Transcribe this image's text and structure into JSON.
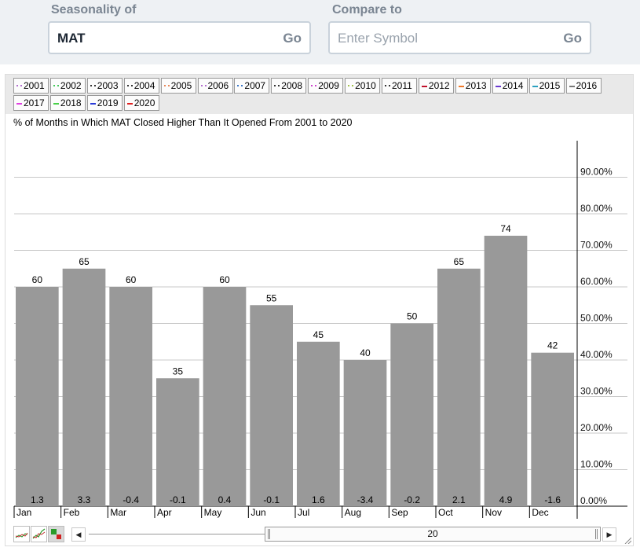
{
  "search": {
    "seasonality_label": "Seasonality of",
    "symbol_value": "MAT",
    "compare_label": "Compare to",
    "compare_placeholder": "Enter Symbol",
    "go_label": "Go"
  },
  "legend": {
    "items": [
      {
        "label": "2001",
        "color": "#b36fd0",
        "style": "dotted"
      },
      {
        "label": "2002",
        "color": "#44c95c",
        "style": "dotted"
      },
      {
        "label": "2003",
        "color": "#333333",
        "style": "dotted"
      },
      {
        "label": "2004",
        "color": "#333333",
        "style": "dotted"
      },
      {
        "label": "2005",
        "color": "#e8885a",
        "style": "dotted"
      },
      {
        "label": "2006",
        "color": "#b36fd0",
        "style": "dotted"
      },
      {
        "label": "2007",
        "color": "#3c78c8",
        "style": "dotted"
      },
      {
        "label": "2008",
        "color": "#333333",
        "style": "dotted"
      },
      {
        "label": "2009",
        "color": "#cc44cc",
        "style": "dotted"
      },
      {
        "label": "2010",
        "color": "#a4c24a",
        "style": "dotted"
      },
      {
        "label": "2011",
        "color": "#333333",
        "style": "dotted"
      },
      {
        "label": "2012",
        "color": "#c0102a",
        "style": "solid"
      },
      {
        "label": "2013",
        "color": "#f07828",
        "style": "solid"
      },
      {
        "label": "2014",
        "color": "#6a3ad0",
        "style": "solid"
      },
      {
        "label": "2015",
        "color": "#2aa0c0",
        "style": "solid"
      },
      {
        "label": "2016",
        "color": "#777777",
        "style": "solid"
      },
      {
        "label": "2017",
        "color": "#e040e0",
        "style": "solid"
      },
      {
        "label": "2018",
        "color": "#48d048",
        "style": "solid"
      },
      {
        "label": "2019",
        "color": "#2a3ad8",
        "style": "solid"
      },
      {
        "label": "2020",
        "color": "#e02020",
        "style": "solid"
      }
    ]
  },
  "slider": {
    "value": "20",
    "prev": "◀",
    "next": "▶"
  },
  "chart_data": {
    "type": "bar",
    "title": "% of Months in Which MAT Closed Higher Than It Opened From 2001 to 2020",
    "categories": [
      "Jan",
      "Feb",
      "Mar",
      "Apr",
      "May",
      "Jun",
      "Jul",
      "Aug",
      "Sep",
      "Oct",
      "Nov",
      "Dec"
    ],
    "values": [
      60,
      65,
      60,
      35,
      60,
      55,
      45,
      40,
      50,
      65,
      74,
      42
    ],
    "value_labels": [
      "60",
      "65",
      "60",
      "35",
      "60",
      "55",
      "45",
      "40",
      "50",
      "65",
      "74",
      "42"
    ],
    "avg_change_labels": [
      "1.3",
      "3.3",
      "-0.4",
      "-0.1",
      "0.4",
      "-0.1",
      "1.6",
      "-3.4",
      "-0.2",
      "2.1",
      "4.9",
      "-1.6"
    ],
    "y_ticks": [
      0,
      10,
      20,
      30,
      40,
      50,
      60,
      70,
      80,
      90
    ],
    "y_tick_labels": [
      "0.00%",
      "10.00%",
      "20.00%",
      "30.00%",
      "40.00%",
      "50.00%",
      "60.00%",
      "70.00%",
      "80.00%",
      "90.00%"
    ],
    "ylim": [
      0,
      100
    ],
    "y_axis_side": "right",
    "grid": true,
    "bar_color": "#999999"
  }
}
